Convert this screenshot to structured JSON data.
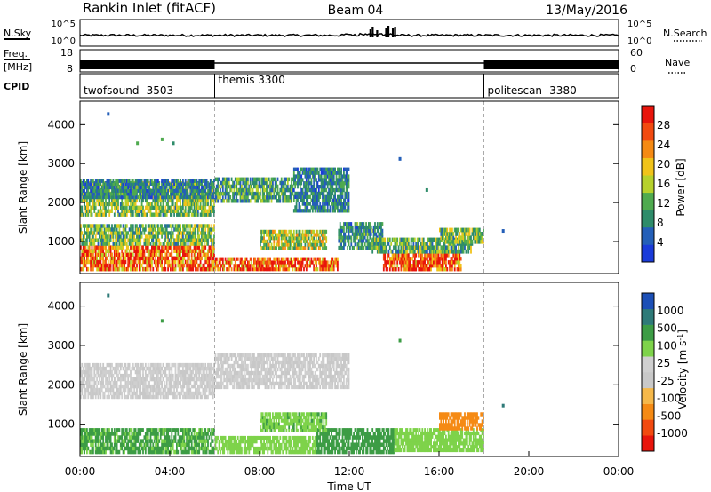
{
  "header": {
    "title": "Rankin Inlet (fitACF)",
    "beam": "Beam 04",
    "date": "13/May/2016"
  },
  "nsky_panel": {
    "left_label": "N.Sky",
    "right_label": "N.Search",
    "ticks": [
      "10^5",
      "10^0"
    ]
  },
  "freq_panel": {
    "left_label": "Freq.",
    "left_unit": "[MHz]",
    "left_ticks": [
      "18",
      "8"
    ],
    "right_label": "Nave",
    "right_ticks": [
      "60",
      "0"
    ],
    "nave_level": 0.85
  },
  "cpid_panel": {
    "label": "CPID",
    "modes": [
      {
        "name": "twofsound -3503",
        "start_hour": 0
      },
      {
        "name": "themis 3300",
        "start_hour": 6
      },
      {
        "name": "politescan -3380",
        "start_hour": 18
      }
    ]
  },
  "colors": {
    "power": [
      "#1a3bd9",
      "#245fb8",
      "#2e8c6a",
      "#4faa4f",
      "#b6d12c",
      "#f0c31a",
      "#f58a14",
      "#f24a10",
      "#e8150c"
    ],
    "velocity": [
      "#e8150c",
      "#f24a10",
      "#f58a14",
      "#f5b84a",
      "#c8c8c8",
      "#cfcfcf",
      "#7ed34a",
      "#3c9c45",
      "#2e7a78",
      "#1c4fb6"
    ]
  },
  "chart_data": [
    {
      "type": "heatmap",
      "name": "power-panel",
      "ylabel": "Slant Range [km]",
      "yticks": [
        "1000",
        "2000",
        "3000",
        "4000"
      ],
      "ylim": [
        180,
        4600
      ],
      "xlim": [
        0,
        24
      ],
      "colorbar": {
        "label": "Power [dB]",
        "ticks": [
          "4",
          "8",
          "12",
          "16",
          "20",
          "24",
          "28"
        ],
        "range": [
          0,
          32
        ]
      },
      "regions": [
        {
          "t0": 0.0,
          "t1": 6.0,
          "r0": 1650,
          "r1": 2550,
          "value": 14
        },
        {
          "t0": 0.0,
          "t1": 6.0,
          "r0": 2100,
          "r1": 2600,
          "value": 8
        },
        {
          "t0": 0.0,
          "t1": 6.0,
          "r0": 250,
          "r1": 900,
          "value": 26
        },
        {
          "t0": 0.0,
          "t1": 6.0,
          "r0": 900,
          "r1": 1450,
          "value": 13
        },
        {
          "t0": 6.0,
          "t1": 9.5,
          "r0": 2000,
          "r1": 2650,
          "value": 11
        },
        {
          "t0": 9.5,
          "t1": 12.0,
          "r0": 1750,
          "r1": 2900,
          "value": 8
        },
        {
          "t0": 6.0,
          "t1": 11.5,
          "r0": 250,
          "r1": 600,
          "value": 27
        },
        {
          "t0": 8.0,
          "t1": 11.0,
          "r0": 800,
          "r1": 1300,
          "value": 16
        },
        {
          "t0": 11.5,
          "t1": 13.5,
          "r0": 800,
          "r1": 1500,
          "value": 9
        },
        {
          "t0": 13.5,
          "t1": 17.0,
          "r0": 250,
          "r1": 700,
          "value": 28
        },
        {
          "t0": 13.0,
          "t1": 17.5,
          "r0": 700,
          "r1": 1100,
          "value": 12
        },
        {
          "t0": 16.0,
          "t1": 18.0,
          "r0": 950,
          "r1": 1350,
          "value": 14
        }
      ],
      "sparse": [
        {
          "t": 1.2,
          "r": 4250,
          "value": 6
        },
        {
          "t": 3.6,
          "r": 3600,
          "value": 12
        },
        {
          "t": 4.1,
          "r": 3500,
          "value": 10
        },
        {
          "t": 2.5,
          "r": 3500,
          "value": 14
        },
        {
          "t": 14.2,
          "r": 3100,
          "value": 7
        },
        {
          "t": 15.4,
          "r": 2300,
          "value": 9
        },
        {
          "t": 18.8,
          "r": 1250,
          "value": 6
        }
      ]
    },
    {
      "type": "heatmap",
      "name": "velocity-panel",
      "ylabel": "Slant Range [km]",
      "yticks": [
        "1000",
        "2000",
        "3000",
        "4000"
      ],
      "ylim": [
        180,
        4600
      ],
      "xlabel": "Time UT",
      "xticks": [
        "00:00",
        "04:00",
        "08:00",
        "12:00",
        "16:00",
        "20:00",
        "00:00"
      ],
      "xlim": [
        0,
        24
      ],
      "colorbar": {
        "label": "Velocity [m s^-1]",
        "ticks": [
          "1000",
          "500",
          "100",
          "25",
          "-25",
          "-100",
          "-500",
          "-1000"
        ]
      },
      "regions": [
        {
          "t0": 0.0,
          "t1": 6.0,
          "r0": 1650,
          "r1": 2550,
          "value": 0
        },
        {
          "t0": 6.0,
          "t1": 12.0,
          "r0": 1900,
          "r1": 2800,
          "value": 0
        },
        {
          "t0": 0.0,
          "t1": 6.0,
          "r0": 250,
          "r1": 900,
          "value": 120
        },
        {
          "t0": 6.0,
          "t1": 10.5,
          "r0": 250,
          "r1": 700,
          "value": 60
        },
        {
          "t0": 10.5,
          "t1": 14.0,
          "r0": 250,
          "r1": 900,
          "value": 200
        },
        {
          "t0": 14.0,
          "t1": 18.0,
          "r0": 300,
          "r1": 900,
          "value": 40
        },
        {
          "t0": 16.0,
          "t1": 18.0,
          "r0": 850,
          "r1": 1300,
          "value": -300
        },
        {
          "t0": 8.0,
          "t1": 11.0,
          "r0": 800,
          "r1": 1300,
          "value": 80
        }
      ],
      "sparse": [
        {
          "t": 1.2,
          "r": 4250,
          "value": 600
        },
        {
          "t": 3.6,
          "r": 3600,
          "value": 200
        },
        {
          "t": 14.2,
          "r": 3100,
          "value": 150
        },
        {
          "t": 18.8,
          "r": 1450,
          "value": 700
        }
      ]
    }
  ]
}
